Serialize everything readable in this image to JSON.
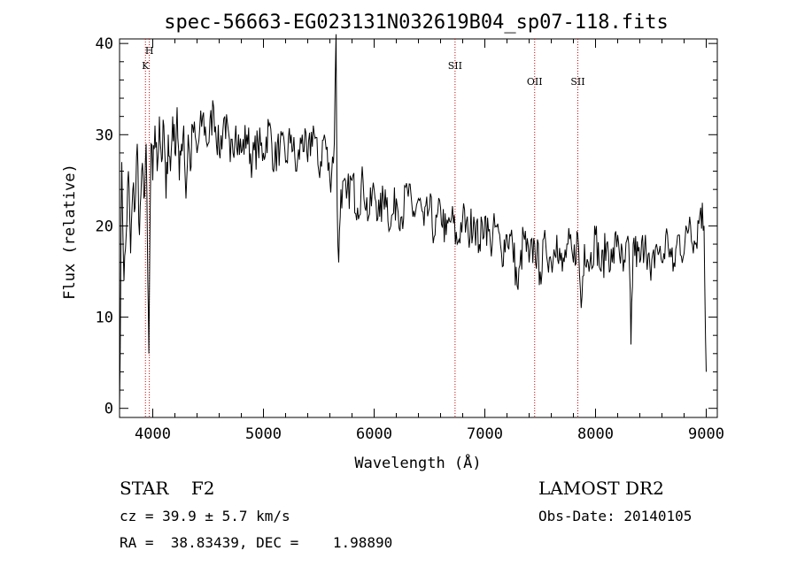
{
  "chart_data": {
    "type": "line",
    "title": "spec-56663-EG023131N032619B04_sp07-118.fits",
    "xlabel": "Wavelength (Å)",
    "ylabel": "Flux (relative)",
    "xlim": [
      3700,
      9100
    ],
    "ylim": [
      -1,
      40.5
    ],
    "x_ticks": [
      4000,
      5000,
      6000,
      7000,
      8000,
      9000
    ],
    "y_ticks": [
      0,
      10,
      20,
      30,
      40
    ],
    "series": [
      {
        "points": [
          [
            3700,
            0
          ],
          [
            3720,
            27
          ],
          [
            3740,
            14
          ],
          [
            3760,
            19
          ],
          [
            3780,
            26
          ],
          [
            3800,
            17
          ],
          [
            3820,
            24
          ],
          [
            3840,
            22
          ],
          [
            3860,
            29
          ],
          [
            3880,
            19
          ],
          [
            3900,
            26
          ],
          [
            3920,
            23
          ],
          [
            3940,
            29
          ],
          [
            3955,
            14
          ],
          [
            3965,
            6
          ],
          [
            3975,
            20
          ],
          [
            3985,
            29
          ],
          [
            4000,
            25
          ],
          [
            4020,
            31
          ],
          [
            4040,
            26
          ],
          [
            4060,
            32
          ],
          [
            4080,
            27
          ],
          [
            4100,
            31
          ],
          [
            4120,
            23
          ],
          [
            4140,
            30
          ],
          [
            4160,
            26
          ],
          [
            4180,
            32
          ],
          [
            4200,
            28
          ],
          [
            4220,
            33
          ],
          [
            4240,
            25
          ],
          [
            4260,
            29
          ],
          [
            4280,
            31
          ],
          [
            4300,
            23
          ],
          [
            4320,
            30
          ],
          [
            4340,
            26
          ],
          [
            4360,
            31
          ],
          [
            4400,
            28
          ],
          [
            4450,
            32
          ],
          [
            4500,
            29
          ],
          [
            4550,
            33
          ],
          [
            4600,
            28
          ],
          [
            4650,
            32
          ],
          [
            4700,
            27
          ],
          [
            4750,
            31
          ],
          [
            4800,
            28
          ],
          [
            4850,
            30
          ],
          [
            4900,
            27
          ],
          [
            4950,
            29
          ],
          [
            5000,
            28
          ],
          [
            5050,
            31
          ],
          [
            5100,
            27
          ],
          [
            5150,
            29
          ],
          [
            5200,
            27
          ],
          [
            5250,
            30
          ],
          [
            5300,
            26
          ],
          [
            5350,
            30
          ],
          [
            5400,
            27
          ],
          [
            5450,
            31
          ],
          [
            5500,
            26
          ],
          [
            5550,
            30
          ],
          [
            5600,
            25
          ],
          [
            5640,
            29
          ],
          [
            5656,
            41
          ],
          [
            5666,
            22
          ],
          [
            5680,
            16
          ],
          [
            5700,
            24
          ],
          [
            5750,
            23
          ],
          [
            5800,
            25
          ],
          [
            5850,
            22
          ],
          [
            5900,
            25
          ],
          [
            5950,
            21
          ],
          [
            6000,
            24
          ],
          [
            6050,
            21
          ],
          [
            6100,
            24
          ],
          [
            6150,
            20
          ],
          [
            6200,
            23
          ],
          [
            6250,
            21
          ],
          [
            6300,
            24
          ],
          [
            6350,
            21
          ],
          [
            6400,
            23
          ],
          [
            6450,
            20
          ],
          [
            6500,
            22
          ],
          [
            6550,
            19
          ],
          [
            6600,
            22
          ],
          [
            6650,
            19
          ],
          [
            6700,
            21
          ],
          [
            6750,
            18
          ],
          [
            6800,
            21
          ],
          [
            6850,
            19
          ],
          [
            6900,
            21
          ],
          [
            6950,
            18
          ],
          [
            7000,
            21
          ],
          [
            7050,
            18
          ],
          [
            7100,
            20
          ],
          [
            7150,
            17
          ],
          [
            7200,
            19
          ],
          [
            7250,
            18
          ],
          [
            7300,
            13
          ],
          [
            7350,
            19
          ],
          [
            7400,
            16
          ],
          [
            7450,
            18
          ],
          [
            7500,
            15
          ],
          [
            7550,
            18
          ],
          [
            7600,
            16
          ],
          [
            7650,
            19
          ],
          [
            7700,
            15
          ],
          [
            7750,
            18
          ],
          [
            7800,
            16
          ],
          [
            7840,
            19
          ],
          [
            7870,
            11
          ],
          [
            7900,
            18
          ],
          [
            7950,
            16
          ],
          [
            8000,
            19
          ],
          [
            8050,
            15
          ],
          [
            8100,
            18
          ],
          [
            8150,
            16
          ],
          [
            8200,
            19
          ],
          [
            8250,
            15
          ],
          [
            8300,
            18
          ],
          [
            8320,
            7
          ],
          [
            8340,
            18
          ],
          [
            8400,
            16
          ],
          [
            8450,
            19
          ],
          [
            8500,
            14
          ],
          [
            8550,
            18
          ],
          [
            8600,
            16
          ],
          [
            8650,
            19
          ],
          [
            8700,
            15
          ],
          [
            8750,
            19
          ],
          [
            8800,
            17
          ],
          [
            8850,
            21
          ],
          [
            8900,
            18
          ],
          [
            8950,
            22
          ],
          [
            8980,
            20
          ],
          [
            9000,
            4
          ]
        ]
      }
    ],
    "lines": [
      {
        "label": "H",
        "x": 3969,
        "row": 1
      },
      {
        "label": "K",
        "x": 3934,
        "row": 2
      },
      {
        "label": "SII",
        "x": 6731,
        "row": 2
      },
      {
        "label": "OII",
        "x": 7450,
        "row": 3
      },
      {
        "label": "SII",
        "x": 7840,
        "row": 3
      }
    ],
    "grid": false,
    "legend": "none",
    "line_color": "#000000",
    "marker_color": "#cc0000"
  },
  "annotations": {
    "object": "STAR    F2",
    "survey": "LAMOST DR2",
    "redshift": "cz = 39.9 ± 5.7 km/s",
    "obs_date": "Obs-Date: 20140105",
    "coords": "RA =  38.83439, DEC =    1.98890"
  }
}
